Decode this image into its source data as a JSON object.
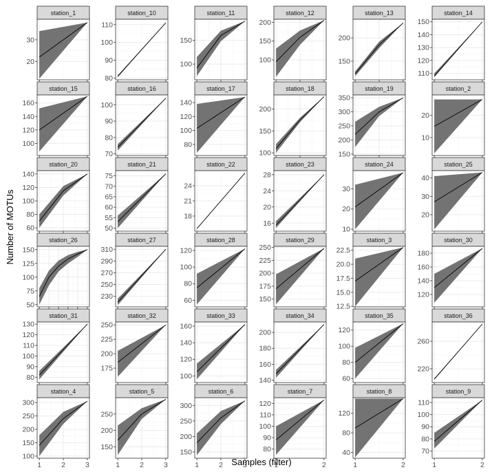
{
  "chart_data": {
    "type": "line",
    "xlabel": "Samples (filter)",
    "ylabel": "Number of MOTUs",
    "colors": {
      "ribbon": "#737373",
      "line": "#000000",
      "strip": "#d9d9d9",
      "strip_border": "#333333",
      "panel_border": "#333333",
      "grid_major": "#ebebeb",
      "grid_minor": "#f5f5f5"
    },
    "panels": [
      {
        "name": "station_1",
        "x": [
          1,
          2
        ],
        "xticks": [
          1,
          2
        ],
        "yticks": [
          20,
          30
        ],
        "ylim": [
          11.5,
          39.5
        ],
        "mean": [
          22,
          38
        ],
        "lower": [
          12,
          38
        ],
        "upper": [
          34,
          38
        ]
      },
      {
        "name": "station_10",
        "x": [
          1,
          2
        ],
        "xticks": [
          1,
          2
        ],
        "yticks": [
          80,
          90,
          100,
          110
        ],
        "ylim": [
          79,
          113
        ],
        "mean": [
          81,
          111
        ],
        "lower": [
          80.5,
          111
        ],
        "upper": [
          81.5,
          111
        ]
      },
      {
        "name": "station_11",
        "x": [
          1,
          2,
          3
        ],
        "xticks": [
          1,
          2,
          3
        ],
        "yticks": [
          100,
          150
        ],
        "ylim": [
          67,
          194
        ],
        "mean": [
          92,
          160,
          190
        ],
        "lower": [
          75,
          148,
          190
        ],
        "upper": [
          115,
          170,
          190
        ]
      },
      {
        "name": "station_12",
        "x": [
          1,
          2,
          3
        ],
        "xticks": [
          1,
          2,
          3
        ],
        "yticks": [
          100,
          150,
          200
        ],
        "ylim": [
          47,
          208
        ],
        "mean": [
          95,
          160,
          205
        ],
        "lower": [
          55,
          140,
          205
        ],
        "upper": [
          130,
          178,
          205
        ]
      },
      {
        "name": "station_13",
        "x": [
          1,
          2,
          3
        ],
        "xticks": [
          1,
          2,
          3
        ],
        "yticks": [
          150,
          200
        ],
        "ylim": [
          110,
          240
        ],
        "mean": [
          123,
          185,
          232
        ],
        "lower": [
          118,
          178,
          232
        ],
        "upper": [
          128,
          192,
          232
        ]
      },
      {
        "name": "station_14",
        "x": [
          1,
          2
        ],
        "xticks": [
          1,
          2
        ],
        "yticks": [
          110,
          120,
          130,
          140,
          150
        ],
        "ylim": [
          105,
          152
        ],
        "mean": [
          108,
          150
        ],
        "lower": [
          107,
          150
        ],
        "upper": [
          110,
          150
        ]
      },
      {
        "name": "station_15",
        "x": [
          1,
          2
        ],
        "xticks": [
          1,
          2
        ],
        "yticks": [
          100,
          120,
          140,
          160
        ],
        "ylim": [
          82,
          172
        ],
        "mean": [
          120,
          170
        ],
        "lower": [
          88,
          170
        ],
        "upper": [
          152,
          170
        ]
      },
      {
        "name": "station_16",
        "x": [
          1,
          2
        ],
        "xticks": [
          1,
          2
        ],
        "yticks": [
          70,
          80,
          90,
          100
        ],
        "ylim": [
          69,
          106
        ],
        "mean": [
          74,
          104
        ],
        "lower": [
          72,
          104
        ],
        "upper": [
          76,
          104
        ]
      },
      {
        "name": "station_17",
        "x": [
          1,
          2
        ],
        "xticks": [
          1,
          2
        ],
        "yticks": [
          80,
          100,
          120,
          140
        ],
        "ylim": [
          64,
          151
        ],
        "mean": [
          103,
          148
        ],
        "lower": [
          68,
          148
        ],
        "upper": [
          138,
          148
        ]
      },
      {
        "name": "station_18",
        "x": [
          1,
          2,
          3
        ],
        "xticks": [
          1,
          2,
          3
        ],
        "yticks": [
          100,
          150,
          200
        ],
        "ylim": [
          94,
          232
        ],
        "mean": [
          110,
          175,
          228
        ],
        "lower": [
          100,
          170,
          228
        ],
        "upper": [
          120,
          180,
          228
        ]
      },
      {
        "name": "station_19",
        "x": [
          1,
          2,
          3
        ],
        "xticks": [
          1,
          2,
          3
        ],
        "yticks": [
          150,
          200,
          250,
          300,
          350
        ],
        "ylim": [
          145,
          360
        ],
        "mean": [
          220,
          300,
          350
        ],
        "lower": [
          175,
          285,
          350
        ],
        "upper": [
          265,
          318,
          350
        ]
      },
      {
        "name": "station_2",
        "x": [
          1,
          2
        ],
        "xticks": [
          1,
          2
        ],
        "yticks": [
          10,
          20
        ],
        "ylim": [
          2,
          29
        ],
        "mean": [
          15,
          27
        ],
        "lower": [
          3,
          27
        ],
        "upper": [
          27,
          27
        ]
      },
      {
        "name": "station_20",
        "x": [
          1,
          2,
          3
        ],
        "xticks": [
          1,
          2,
          3
        ],
        "yticks": [
          60,
          80,
          100,
          120,
          140
        ],
        "ylim": [
          55,
          145
        ],
        "mean": [
          70,
          115,
          140
        ],
        "lower": [
          60,
          108,
          140
        ],
        "upper": [
          80,
          122,
          140
        ]
      },
      {
        "name": "station_21",
        "x": [
          1,
          2
        ],
        "xticks": [
          1,
          2
        ],
        "yticks": [
          50,
          55,
          60,
          65,
          70,
          75
        ],
        "ylim": [
          48.5,
          77.5
        ],
        "mean": [
          53,
          76
        ],
        "lower": [
          50,
          76
        ],
        "upper": [
          56,
          76
        ]
      },
      {
        "name": "station_22",
        "x": [
          1,
          2
        ],
        "xticks": [
          1,
          2
        ],
        "yticks": [
          18,
          21,
          24
        ],
        "ylim": [
          15,
          27
        ],
        "mean": [
          15.5,
          26.5
        ],
        "lower": [
          15.5,
          26.5
        ],
        "upper": [
          15.5,
          26.5
        ]
      },
      {
        "name": "station_23",
        "x": [
          1,
          2
        ],
        "xticks": [
          1,
          2
        ],
        "yticks": [
          16,
          20,
          24,
          28
        ],
        "ylim": [
          14,
          29
        ],
        "mean": [
          15.5,
          28
        ],
        "lower": [
          14.8,
          28
        ],
        "upper": [
          16.5,
          28
        ]
      },
      {
        "name": "station_24",
        "x": [
          1,
          2
        ],
        "xticks": [
          1,
          2
        ],
        "yticks": [
          10,
          20,
          30
        ],
        "ylim": [
          9,
          39
        ],
        "mean": [
          21,
          38
        ],
        "lower": [
          10,
          38
        ],
        "upper": [
          32,
          38
        ]
      },
      {
        "name": "station_25",
        "x": [
          1,
          2
        ],
        "xticks": [
          1,
          2
        ],
        "yticks": [
          20,
          30,
          40
        ],
        "ylim": [
          11,
          44
        ],
        "mean": [
          27,
          43
        ],
        "lower": [
          12,
          43
        ],
        "upper": [
          41,
          43
        ]
      },
      {
        "name": "station_26",
        "x": [
          1,
          2,
          3,
          4,
          5,
          6
        ],
        "xticks": [
          1,
          2,
          3,
          4,
          5,
          6
        ],
        "yticks": [
          50,
          75,
          100,
          125,
          150
        ],
        "ylim": [
          46,
          156
        ],
        "mean": [
          65,
          100,
          120,
          133,
          142,
          150
        ],
        "lower": [
          50,
          85,
          110,
          125,
          137,
          150
        ],
        "upper": [
          80,
          112,
          130,
          140,
          146,
          150
        ]
      },
      {
        "name": "station_27",
        "x": [
          1,
          2
        ],
        "xticks": [
          1,
          2
        ],
        "yticks": [
          230,
          250,
          270,
          290,
          310
        ],
        "ylim": [
          212,
          315
        ],
        "mean": [
          220,
          310
        ],
        "lower": [
          215,
          310
        ],
        "upper": [
          226,
          310
        ]
      },
      {
        "name": "station_28",
        "x": [
          1,
          2
        ],
        "xticks": [
          1,
          2
        ],
        "yticks": [
          60,
          80,
          100,
          120
        ],
        "ylim": [
          52,
          125
        ],
        "mean": [
          75,
          122
        ],
        "lower": [
          55,
          122
        ],
        "upper": [
          92,
          122
        ]
      },
      {
        "name": "station_29",
        "x": [
          1,
          2
        ],
        "xticks": [
          1,
          2
        ],
        "yticks": [
          150,
          175,
          200,
          225,
          250
        ],
        "ylim": [
          135,
          252
        ],
        "mean": [
          170,
          248
        ],
        "lower": [
          140,
          248
        ],
        "upper": [
          198,
          248
        ]
      },
      {
        "name": "station_3",
        "x": [
          1,
          2
        ],
        "xticks": [
          1,
          2
        ],
        "yticks": [
          12.5,
          15.0,
          17.5,
          20.0,
          22.5
        ],
        "ylim": [
          12.4,
          23.2
        ],
        "mean": [
          17,
          23
        ],
        "lower": [
          12.5,
          23
        ],
        "upper": [
          21,
          23
        ]
      },
      {
        "name": "station_30",
        "x": [
          1,
          2
        ],
        "xticks": [
          1,
          2
        ],
        "yticks": [
          120,
          140,
          160,
          180
        ],
        "ylim": [
          102,
          190
        ],
        "mean": [
          130,
          187
        ],
        "lower": [
          108,
          187
        ],
        "upper": [
          150,
          187
        ]
      },
      {
        "name": "station_31",
        "x": [
          1,
          2
        ],
        "xticks": [
          1,
          2
        ],
        "yticks": [
          80,
          90,
          100,
          110,
          120,
          130
        ],
        "ylim": [
          75,
          132
        ],
        "mean": [
          82,
          130
        ],
        "lower": [
          78,
          130
        ],
        "upper": [
          86,
          130
        ]
      },
      {
        "name": "station_32",
        "x": [
          1,
          2
        ],
        "xticks": [
          1,
          2
        ],
        "yticks": [
          175,
          200,
          225,
          250
        ],
        "ylim": [
          150,
          255
        ],
        "mean": [
          185,
          250
        ],
        "lower": [
          160,
          250
        ],
        "upper": [
          205,
          250
        ]
      },
      {
        "name": "station_33",
        "x": [
          1,
          2
        ],
        "xticks": [
          1,
          2
        ],
        "yticks": [
          100,
          120,
          140,
          160
        ],
        "ylim": [
          92,
          165
        ],
        "mean": [
          105,
          162
        ],
        "lower": [
          96,
          162
        ],
        "upper": [
          115,
          162
        ]
      },
      {
        "name": "station_34",
        "x": [
          1,
          2
        ],
        "xticks": [
          1,
          2
        ],
        "yticks": [
          140,
          160,
          180,
          200
        ],
        "ylim": [
          137,
          213
        ],
        "mean": [
          148,
          210
        ],
        "lower": [
          143,
          210
        ],
        "upper": [
          153,
          210
        ]
      },
      {
        "name": "station_35",
        "x": [
          1,
          2
        ],
        "xticks": [
          1,
          2
        ],
        "yticks": [
          60,
          80,
          100,
          120
        ],
        "ylim": [
          55,
          130
        ],
        "mean": [
          80,
          128
        ],
        "lower": [
          60,
          128
        ],
        "upper": [
          98,
          128
        ]
      },
      {
        "name": "station_36",
        "x": [
          1,
          2
        ],
        "xticks": [
          1,
          2
        ],
        "yticks": [
          220,
          260
        ],
        "ylim": [
          200,
          288
        ],
        "mean": [
          205,
          285
        ],
        "lower": [
          204,
          285
        ],
        "upper": [
          206,
          285
        ]
      },
      {
        "name": "station_4",
        "x": [
          1,
          2,
          3
        ],
        "xticks": [
          1,
          2,
          3
        ],
        "yticks": [
          100,
          150,
          200,
          250,
          300
        ],
        "ylim": [
          92,
          318
        ],
        "mean": [
          140,
          240,
          305
        ],
        "lower": [
          100,
          220,
          305
        ],
        "upper": [
          178,
          265,
          305
        ]
      },
      {
        "name": "station_5",
        "x": [
          1,
          2,
          3
        ],
        "xticks": [
          1,
          2,
          3
        ],
        "yticks": [
          150,
          200,
          250
        ],
        "ylim": [
          115,
          300
        ],
        "mean": [
          170,
          250,
          295
        ],
        "lower": [
          125,
          235,
          295
        ],
        "upper": [
          215,
          268,
          295
        ]
      },
      {
        "name": "station_6",
        "x": [
          1,
          2,
          3
        ],
        "xticks": [
          1,
          2,
          3
        ],
        "yticks": [
          150,
          200,
          250,
          300
        ],
        "ylim": [
          130,
          325
        ],
        "mean": [
          180,
          260,
          315
        ],
        "lower": [
          140,
          240,
          315
        ],
        "upper": [
          210,
          282,
          315
        ]
      },
      {
        "name": "station_7",
        "x": [
          1,
          2
        ],
        "xticks": [
          1,
          2
        ],
        "yticks": [
          80,
          90,
          100,
          110,
          120
        ],
        "ylim": [
          72,
          125
        ],
        "mean": [
          88,
          123
        ],
        "lower": [
          75,
          123
        ],
        "upper": [
          100,
          123
        ]
      },
      {
        "name": "station_8",
        "x": [
          1,
          2
        ],
        "xticks": [
          1,
          2
        ],
        "yticks": [
          40,
          80,
          120
        ],
        "ylim": [
          28,
          152
        ],
        "mean": [
          90,
          150
        ],
        "lower": [
          30,
          150
        ],
        "upper": [
          150,
          150
        ]
      },
      {
        "name": "station_9",
        "x": [
          1,
          2
        ],
        "xticks": [
          1,
          2
        ],
        "yticks": [
          70,
          80,
          90,
          100,
          110
        ],
        "ylim": [
          64,
          114
        ],
        "mean": [
          78,
          112
        ],
        "lower": [
          72,
          112
        ],
        "upper": [
          85,
          112
        ]
      }
    ]
  }
}
